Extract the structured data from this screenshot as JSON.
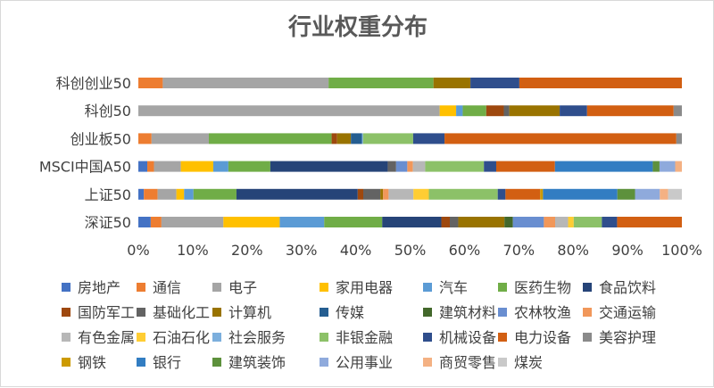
{
  "chart_data": {
    "type": "bar",
    "orientation": "horizontal",
    "stacked": "percent",
    "title": "行业权重分布",
    "xlabel": "",
    "ylabel": "",
    "xlim": [
      0,
      1
    ],
    "x_ticks": [
      "0%",
      "10%",
      "20%",
      "30%",
      "40%",
      "50%",
      "60%",
      "70%",
      "80%",
      "90%",
      "100%"
    ],
    "grid": false,
    "legend_position": "bottom",
    "categories": [
      "科创创业50",
      "科创50",
      "创业板50",
      "MSCI中国A50",
      "上证50",
      "深证50"
    ],
    "series": [
      {
        "name": "房地产",
        "color": "#4472C4",
        "values": [
          0.0,
          0.0,
          0.0,
          0.016,
          0.01,
          0.022
        ]
      },
      {
        "name": "通信",
        "color": "#ED7D31",
        "values": [
          0.045,
          0.0,
          0.024,
          0.012,
          0.025,
          0.019
        ]
      },
      {
        "name": "电子",
        "color": "#A5A5A5",
        "values": [
          0.305,
          0.55,
          0.104,
          0.048,
          0.034,
          0.11
        ]
      },
      {
        "name": "家用电器",
        "color": "#FFC000",
        "values": [
          0.0,
          0.03,
          0.0,
          0.058,
          0.014,
          0.1
        ]
      },
      {
        "name": "汽车",
        "color": "#5B9BD5",
        "values": [
          0.0,
          0.012,
          0.0,
          0.027,
          0.017,
          0.079
        ]
      },
      {
        "name": "医药生物",
        "color": "#70AD47",
        "values": [
          0.193,
          0.043,
          0.223,
          0.075,
          0.078,
          0.103
        ]
      },
      {
        "name": "食品饮料",
        "color": "#264478",
        "values": [
          0.0,
          0.0,
          0.0,
          0.21,
          0.22,
          0.105
        ]
      },
      {
        "name": "国防军工",
        "color": "#9E480E",
        "values": [
          0.0,
          0.032,
          0.01,
          0.0,
          0.01,
          0.015
        ]
      },
      {
        "name": "基础化工",
        "color": "#636363",
        "values": [
          0.0,
          0.01,
          0.0,
          0.015,
          0.031,
          0.015
        ]
      },
      {
        "name": "计算机",
        "color": "#997300",
        "values": [
          0.068,
          0.092,
          0.025,
          0.0,
          0.005,
          0.082
        ]
      },
      {
        "name": "传媒",
        "color": "#255E91",
        "values": [
          0.0,
          0.0,
          0.02,
          0.0,
          0.0,
          0.0
        ]
      },
      {
        "name": "建筑材料",
        "color": "#43682B",
        "values": [
          0.0,
          0.0,
          0.0,
          0.0,
          0.0,
          0.015
        ]
      },
      {
        "name": "农林牧渔",
        "color": "#698ED0",
        "values": [
          0.0,
          0.0,
          0.0,
          0.02,
          0.0,
          0.055
        ]
      },
      {
        "name": "交通运输",
        "color": "#F1975A",
        "values": [
          0.0,
          0.0,
          0.0,
          0.01,
          0.01,
          0.02
        ]
      },
      {
        "name": "有色金属",
        "color": "#B7B7B7",
        "values": [
          0.0,
          0.0,
          0.0,
          0.022,
          0.045,
          0.023
        ]
      },
      {
        "name": "石油石化",
        "color": "#FFCD33",
        "values": [
          0.0,
          0.0,
          0.0,
          0.0,
          0.028,
          0.01
        ]
      },
      {
        "name": "社会服务",
        "color": "#7CAFDD",
        "values": [
          0.0,
          0.0,
          0.002,
          0.0,
          0.0,
          0.0
        ]
      },
      {
        "name": "非银金融",
        "color": "#8CC168",
        "values": [
          0.0,
          0.0,
          0.091,
          0.105,
          0.125,
          0.05
        ]
      },
      {
        "name": "机械设备",
        "color": "#2F4E8C",
        "values": [
          0.09,
          0.05,
          0.057,
          0.022,
          0.014,
          0.027
        ]
      },
      {
        "name": "电力设备",
        "color": "#D25F12",
        "values": [
          0.299,
          0.158,
          0.421,
          0.105,
          0.063,
          0.115
        ]
      },
      {
        "name": "美容护理",
        "color": "#8A8A8A",
        "values": [
          0.0,
          0.015,
          0.01,
          0.0,
          0.0,
          0.0
        ]
      },
      {
        "name": "钢铁",
        "color": "#CC9A00",
        "values": [
          0.0,
          0.0,
          0.0,
          0.0,
          0.005,
          0.0
        ]
      },
      {
        "name": "银行",
        "color": "#327DC2",
        "values": [
          0.0,
          0.0,
          0.0,
          0.175,
          0.135,
          0.0
        ]
      },
      {
        "name": "建筑装饰",
        "color": "#5D913C",
        "values": [
          0.0,
          0.0,
          0.0,
          0.012,
          0.032,
          0.0
        ]
      },
      {
        "name": "公用事业",
        "color": "#8FAADC",
        "values": [
          0.0,
          0.0,
          0.0,
          0.028,
          0.045,
          0.0
        ]
      },
      {
        "name": "商贸零售",
        "color": "#F4B183",
        "values": [
          0.0,
          0.0,
          0.0,
          0.012,
          0.015,
          0.0
        ]
      },
      {
        "name": "煤炭",
        "color": "#C9C9C9",
        "values": [
          0.0,
          0.0,
          0.0,
          0.0,
          0.025,
          0.0
        ]
      }
    ]
  }
}
